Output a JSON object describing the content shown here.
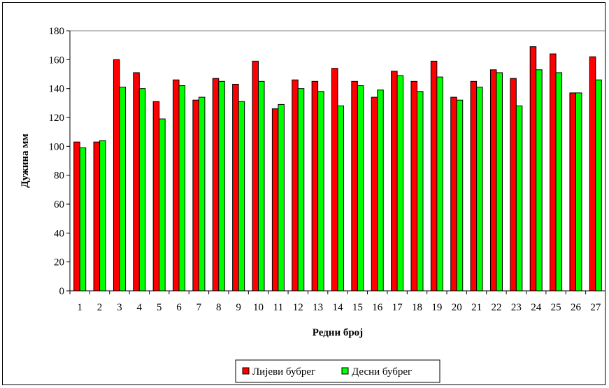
{
  "chart_data": {
    "type": "bar",
    "title": "",
    "xlabel": "Редни број",
    "ylabel": "Дужина мм",
    "ylim": [
      0,
      180
    ],
    "yticks": [
      0,
      20,
      40,
      60,
      80,
      100,
      120,
      140,
      160,
      180
    ],
    "grid": false,
    "legend_position": "bottom",
    "categories": [
      "1",
      "2",
      "3",
      "4",
      "5",
      "6",
      "7",
      "8",
      "9",
      "10",
      "11",
      "12",
      "13",
      "14",
      "15",
      "16",
      "17",
      "18",
      "19",
      "20",
      "21",
      "22",
      "23",
      "24",
      "25",
      "26",
      "27"
    ],
    "series": [
      {
        "name": "Лијеви бубрег",
        "color": "#ff0000",
        "values": [
          103,
          103,
          160,
          151,
          131,
          146,
          132,
          147,
          143,
          159,
          126,
          146,
          145,
          154,
          145,
          134,
          152,
          145,
          159,
          134,
          145,
          153,
          147,
          169,
          164,
          137,
          162
        ]
      },
      {
        "name": "Десни бубрег",
        "color": "#00ff00",
        "values": [
          99,
          104,
          141,
          140,
          119,
          142,
          134,
          145,
          131,
          145,
          129,
          140,
          138,
          128,
          142,
          139,
          149,
          138,
          148,
          132,
          141,
          151,
          128,
          153,
          151,
          137,
          146
        ]
      }
    ],
    "plot_background": "#ffffff",
    "bar_outline": "#000000"
  }
}
